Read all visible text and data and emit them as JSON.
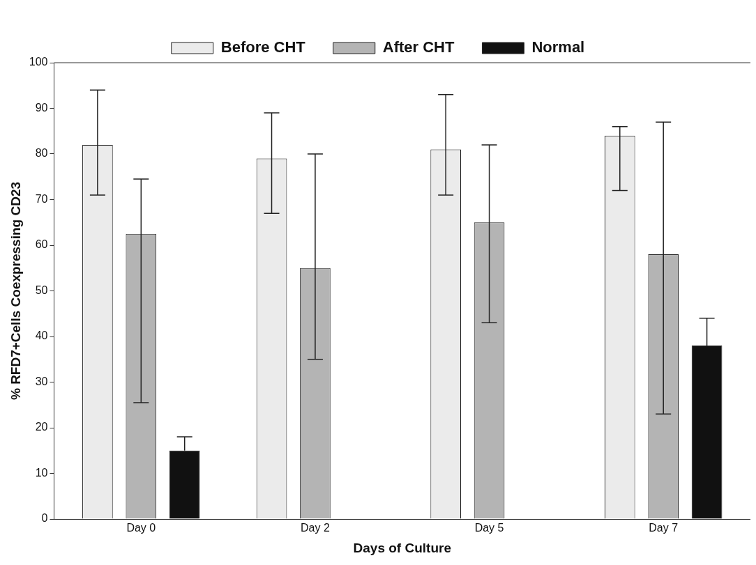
{
  "chart_data": {
    "type": "bar",
    "xlabel": "Days of Culture",
    "ylabel": "% RFD7+Cells Coexpressing CD23",
    "categories": [
      "Day 0",
      "Day 2",
      "Day 5",
      "Day 7"
    ],
    "series": [
      {
        "name": "Before CHT",
        "color": "#ebebeb",
        "values": [
          82,
          79,
          81,
          84
        ],
        "errors": [
          [
            71,
            94
          ],
          [
            67,
            89
          ],
          [
            71,
            93
          ],
          [
            72,
            86
          ]
        ]
      },
      {
        "name": "After CHT",
        "color": "#b4b4b4",
        "values": [
          62.5,
          55,
          65,
          58
        ],
        "errors": [
          [
            25.5,
            74.5
          ],
          [
            35,
            80
          ],
          [
            43,
            82
          ],
          [
            23,
            87
          ]
        ]
      },
      {
        "name": "Normal",
        "color": "#111111",
        "values": [
          15,
          null,
          null,
          38
        ],
        "errors": [
          [
            15,
            18
          ],
          null,
          null,
          [
            38,
            44
          ]
        ]
      }
    ],
    "ylim": [
      0,
      100
    ],
    "yticks": [
      0,
      10,
      20,
      30,
      40,
      50,
      60,
      70,
      80,
      90,
      100
    ],
    "grid": false,
    "legend": "top"
  }
}
